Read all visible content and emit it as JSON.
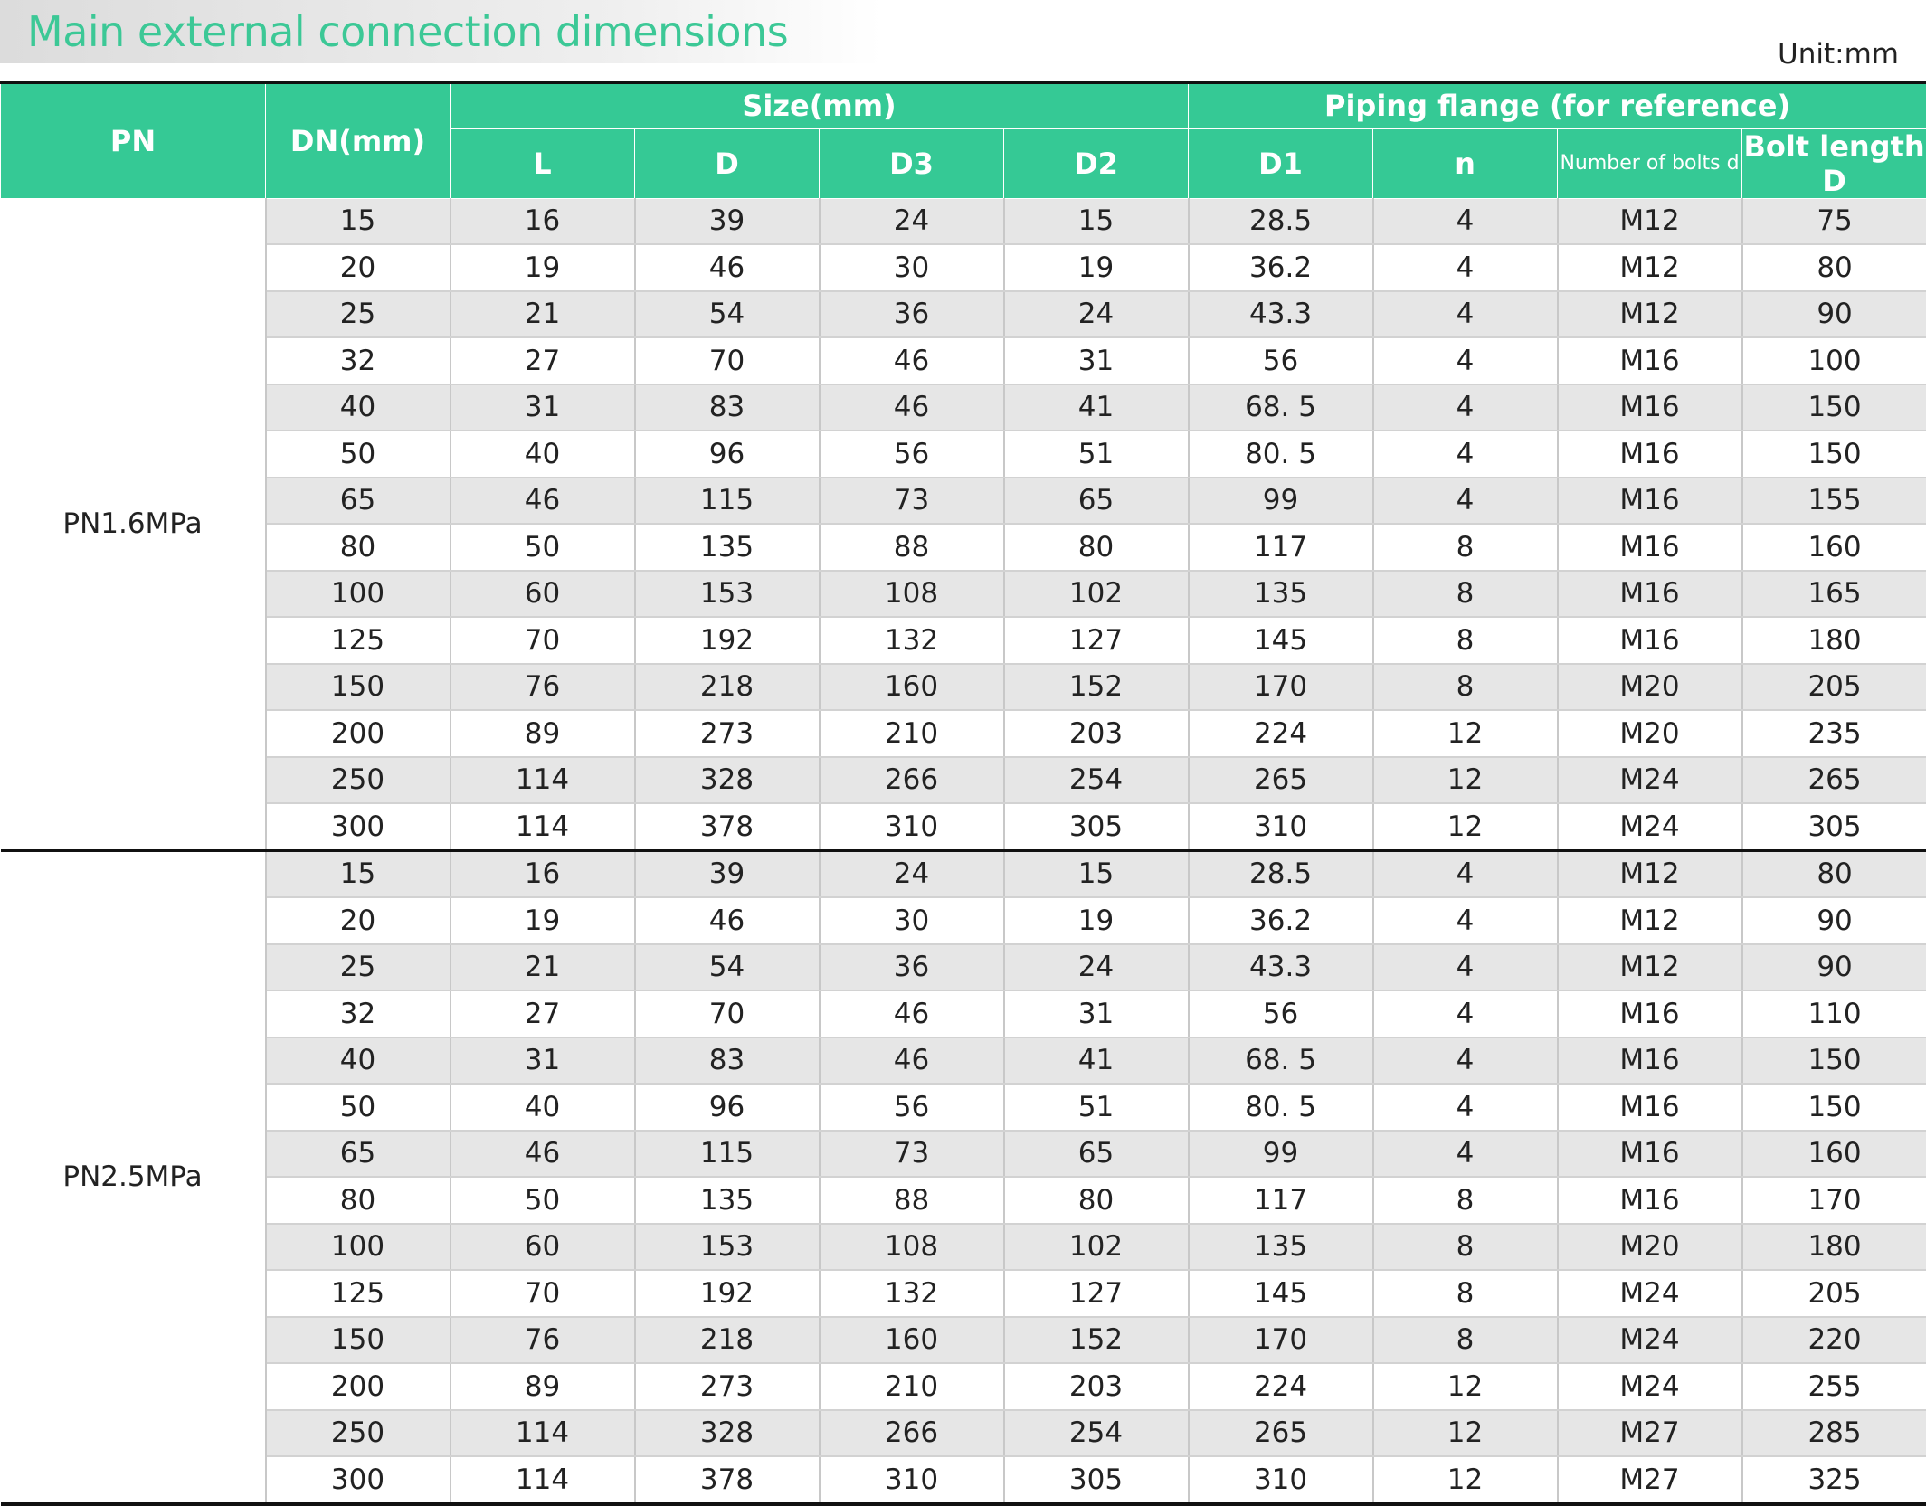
{
  "header": {
    "title": "Main external connection dimensions",
    "unit": "Unit:mm"
  },
  "table": {
    "columns": {
      "pn": "PN",
      "dn": "DN(mm)",
      "size_group": "Size(mm)",
      "flange_group": "Piping flange (for reference)",
      "sub": [
        "L",
        "D",
        "D3",
        "D2",
        "D1",
        "n",
        "Number of bolts d",
        "Bolt length D"
      ]
    },
    "groups": [
      {
        "pn": "PN1.6MPa",
        "rows": [
          [
            "15",
            "16",
            "39",
            "24",
            "15",
            "28.5",
            "4",
            "M12",
            "75"
          ],
          [
            "20",
            "19",
            "46",
            "30",
            "19",
            "36.2",
            "4",
            "M12",
            "80"
          ],
          [
            "25",
            "21",
            "54",
            "36",
            "24",
            "43.3",
            "4",
            "M12",
            "90"
          ],
          [
            "32",
            "27",
            "70",
            "46",
            "31",
            "56",
            "4",
            "M16",
            "100"
          ],
          [
            "40",
            "31",
            "83",
            "46",
            "41",
            "68. 5",
            "4",
            "M16",
            "150"
          ],
          [
            "50",
            "40",
            "96",
            "56",
            "51",
            "80. 5",
            "4",
            "M16",
            "150"
          ],
          [
            "65",
            "46",
            "115",
            "73",
            "65",
            "99",
            "4",
            "M16",
            "155"
          ],
          [
            "80",
            "50",
            "135",
            "88",
            "80",
            "117",
            "8",
            "M16",
            "160"
          ],
          [
            "100",
            "60",
            "153",
            "108",
            "102",
            "135",
            "8",
            "M16",
            "165"
          ],
          [
            "125",
            "70",
            "192",
            "132",
            "127",
            "145",
            "8",
            "M16",
            "180"
          ],
          [
            "150",
            "76",
            "218",
            "160",
            "152",
            "170",
            "8",
            "M20",
            "205"
          ],
          [
            "200",
            "89",
            "273",
            "210",
            "203",
            "224",
            "12",
            "M20",
            "235"
          ],
          [
            "250",
            "114",
            "328",
            "266",
            "254",
            "265",
            "12",
            "M24",
            "265"
          ],
          [
            "300",
            "114",
            "378",
            "310",
            "305",
            "310",
            "12",
            "M24",
            "305"
          ]
        ]
      },
      {
        "pn": "PN2.5MPa",
        "rows": [
          [
            "15",
            "16",
            "39",
            "24",
            "15",
            "28.5",
            "4",
            "M12",
            "80"
          ],
          [
            "20",
            "19",
            "46",
            "30",
            "19",
            "36.2",
            "4",
            "M12",
            "90"
          ],
          [
            "25",
            "21",
            "54",
            "36",
            "24",
            "43.3",
            "4",
            "M12",
            "90"
          ],
          [
            "32",
            "27",
            "70",
            "46",
            "31",
            "56",
            "4",
            "M16",
            "110"
          ],
          [
            "40",
            "31",
            "83",
            "46",
            "41",
            "68. 5",
            "4",
            "M16",
            "150"
          ],
          [
            "50",
            "40",
            "96",
            "56",
            "51",
            "80. 5",
            "4",
            "M16",
            "150"
          ],
          [
            "65",
            "46",
            "115",
            "73",
            "65",
            "99",
            "4",
            "M16",
            "160"
          ],
          [
            "80",
            "50",
            "135",
            "88",
            "80",
            "117",
            "8",
            "M16",
            "170"
          ],
          [
            "100",
            "60",
            "153",
            "108",
            "102",
            "135",
            "8",
            "M20",
            "180"
          ],
          [
            "125",
            "70",
            "192",
            "132",
            "127",
            "145",
            "8",
            "M24",
            "205"
          ],
          [
            "150",
            "76",
            "218",
            "160",
            "152",
            "170",
            "8",
            "M24",
            "220"
          ],
          [
            "200",
            "89",
            "273",
            "210",
            "203",
            "224",
            "12",
            "M24",
            "255"
          ],
          [
            "250",
            "114",
            "328",
            "266",
            "254",
            "265",
            "12",
            "M27",
            "285"
          ],
          [
            "300",
            "114",
            "378",
            "310",
            "305",
            "310",
            "12",
            "M27",
            "325"
          ]
        ]
      }
    ]
  }
}
